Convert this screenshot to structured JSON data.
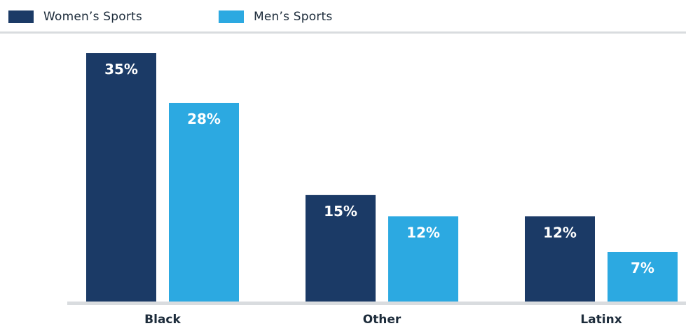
{
  "chart_data": {
    "type": "bar",
    "categories": [
      "Black",
      "Other",
      "Latinx"
    ],
    "series": [
      {
        "name": "Women’s Sports",
        "color": "#1b3a66",
        "values": [
          35,
          15,
          12
        ],
        "labels": [
          "35%",
          "15%",
          "12%"
        ]
      },
      {
        "name": "Men’s Sports",
        "color": "#2ca9e1",
        "values": [
          28,
          12,
          7
        ],
        "labels": [
          "28%",
          "12%",
          "7%"
        ]
      }
    ],
    "ylim": [
      0,
      35
    ],
    "legend": "top-left",
    "grid": false
  }
}
